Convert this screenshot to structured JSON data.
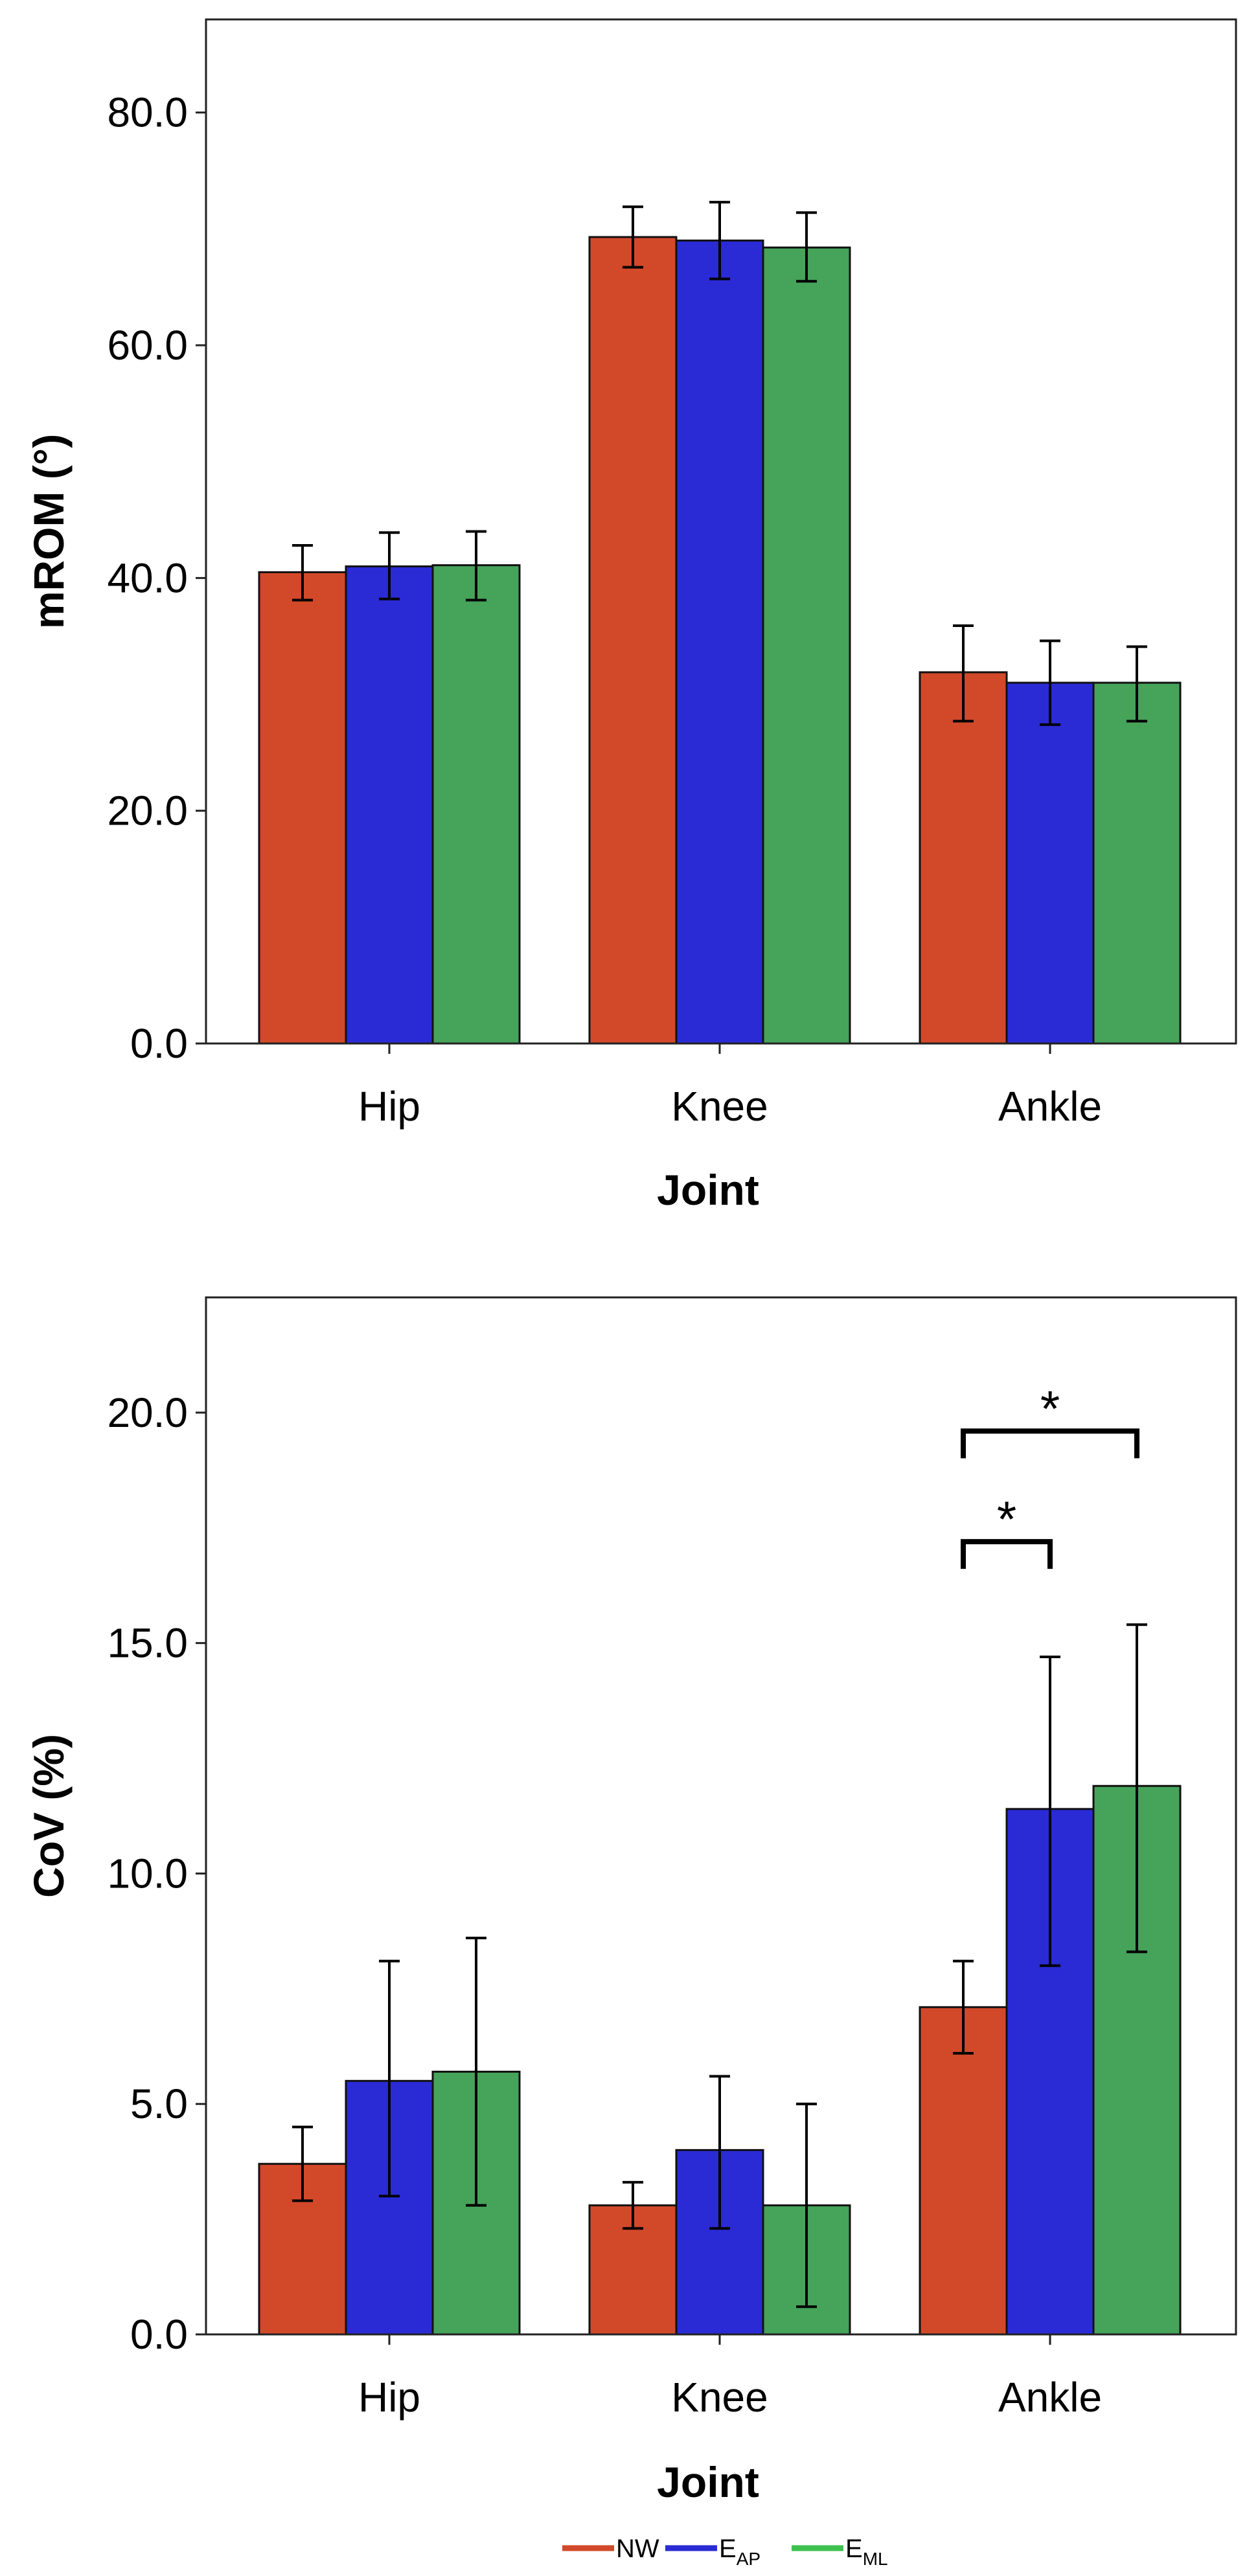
{
  "chart_data": [
    {
      "type": "bar",
      "title": "",
      "xlabel": "Joint",
      "ylabel": "mROM (°)",
      "categories": [
        "Hip",
        "Knee",
        "Ankle"
      ],
      "ylim": [
        0,
        88
      ],
      "yticks": [
        0,
        20,
        40,
        60,
        80
      ],
      "ytick_labels": [
        "0.0",
        "20.0",
        "40.0",
        "60.0",
        "80.0"
      ],
      "grid": false,
      "series": [
        {
          "name": "NW",
          "color": "#d2492a",
          "values": [
            40.5,
            69.3,
            31.9
          ],
          "err_low": [
            38.1,
            66.7,
            27.7
          ],
          "err_high": [
            42.8,
            71.9,
            35.9
          ]
        },
        {
          "name": "EAP",
          "color": "#2a2bd5",
          "values": [
            41.0,
            69.0,
            31.0
          ],
          "err_low": [
            38.2,
            65.7,
            27.4
          ],
          "err_high": [
            43.9,
            72.3,
            34.6
          ]
        },
        {
          "name": "EML",
          "color": "#46a35a",
          "values": [
            41.1,
            68.4,
            31.0
          ],
          "err_low": [
            38.1,
            65.5,
            27.7
          ],
          "err_high": [
            44.0,
            71.4,
            34.1
          ]
        }
      ],
      "significance": []
    },
    {
      "type": "bar",
      "title": "",
      "xlabel": "Joint",
      "ylabel": "CoV (%)",
      "categories": [
        "Hip",
        "Knee",
        "Ankle"
      ],
      "ylim": [
        0,
        22.5
      ],
      "yticks": [
        0,
        5,
        10,
        15,
        20
      ],
      "ytick_labels": [
        "0.0",
        "5.0",
        "10.0",
        "15.0",
        "20.0"
      ],
      "grid": false,
      "series": [
        {
          "name": "NW",
          "color": "#d2492a",
          "values": [
            3.7,
            2.8,
            7.1
          ],
          "err_low": [
            2.9,
            2.3,
            6.1
          ],
          "err_high": [
            4.5,
            3.3,
            8.1
          ]
        },
        {
          "name": "EAP",
          "color": "#2a2bd5",
          "values": [
            5.5,
            4.0,
            11.4
          ],
          "err_low": [
            3.0,
            2.3,
            8.0
          ],
          "err_high": [
            8.1,
            5.6,
            14.7
          ]
        },
        {
          "name": "EML",
          "color": "#46a35a",
          "values": [
            5.7,
            2.8,
            11.9
          ],
          "err_low": [
            2.8,
            0.6,
            8.3
          ],
          "err_high": [
            8.6,
            5.0,
            15.4
          ]
        }
      ],
      "significance": [
        {
          "category": "Ankle",
          "from_series": 0,
          "to_series": 1,
          "level": 17.2,
          "label": "*"
        },
        {
          "category": "Ankle",
          "from_series": 0,
          "to_series": 2,
          "level": 19.6,
          "label": "*"
        }
      ]
    }
  ],
  "legend": {
    "entries": [
      {
        "label": "NW",
        "sub": "",
        "color": "#d2492a"
      },
      {
        "label": "E",
        "sub": "AP",
        "color": "#2a2bd5"
      },
      {
        "label": "E",
        "sub": "ML",
        "color": "#3ec24f"
      }
    ]
  }
}
